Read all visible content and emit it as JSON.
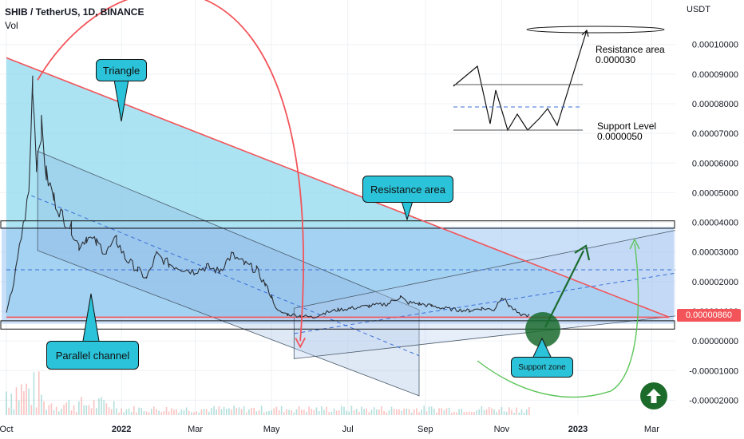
{
  "header": {
    "title": "SHIB / TetherUS, 1D, BINANCE",
    "indicator": "Vol",
    "axis_unit": "USDT"
  },
  "colors": {
    "triangle_line": "#f25459",
    "triangle_fill": "#8fd9ef",
    "channel_fill": "#9ec5f2",
    "accent_arrow": "#1a6b2e",
    "curve": "#f25459",
    "green_curve": "#5ec55b",
    "price_tag": "#f25459"
  },
  "annotations": {
    "triangle": "Triangle",
    "resistance_callout": "Resistance area",
    "parallel_channel": "Parallel channel",
    "support_zone": "Support zone",
    "resistance_note_label": "Resistance area",
    "resistance_note_value": "0.000030",
    "support_note_label": "Support Level",
    "support_note_value": "0.0000050"
  },
  "current_price": "0.00000860",
  "icons": {
    "up_arrow": "arrow-up-circle-icon"
  },
  "chart_data": {
    "type": "line",
    "title": "SHIB / TetherUS, 1D, BINANCE",
    "ylabel": "USDT",
    "ylim": [
      -2.5e-05,
      0.000115
    ],
    "y_ticks": [
      "0.00010000",
      "0.00009000",
      "0.00008000",
      "0.00007000",
      "0.00006000",
      "0.00005000",
      "0.00004000",
      "0.00003000",
      "0.00002000",
      "0.00001000",
      "0.00000000",
      "-0.00001000",
      "-0.00002000"
    ],
    "y_tick_values": [
      0.0001,
      9e-05,
      8e-05,
      7e-05,
      6e-05,
      5e-05,
      4e-05,
      3e-05,
      2e-05,
      1e-05,
      0.0,
      -1e-05,
      -2e-05
    ],
    "x_ticks": [
      "Oct",
      "2022",
      "Mar",
      "May",
      "Jul",
      "Sep",
      "Nov",
      "2023",
      "Mar"
    ],
    "x_tick_days": [
      0,
      92,
      151,
      212,
      273,
      335,
      396,
      457,
      516
    ],
    "series": [
      {
        "values": [
          [
            0,
            9e-06
          ],
          [
            6,
            2e-05
          ],
          [
            12,
            3.5e-05
          ],
          [
            18,
            5e-05
          ],
          [
            21,
            8.8e-05
          ],
          [
            24,
            6e-05
          ],
          [
            28,
            7.2e-05
          ],
          [
            32,
            5.6e-05
          ],
          [
            38,
            4.8e-05
          ],
          [
            45,
            4.2e-05
          ],
          [
            52,
            3.8e-05
          ],
          [
            58,
            3.2e-05
          ],
          [
            64,
            3.5e-05
          ],
          [
            72,
            3.3e-05
          ],
          [
            80,
            3e-05
          ],
          [
            88,
            3.4e-05
          ],
          [
            95,
            2.8e-05
          ],
          [
            105,
            2.4e-05
          ],
          [
            112,
            2.1e-05
          ],
          [
            120,
            2.9e-05
          ],
          [
            130,
            2.6e-05
          ],
          [
            140,
            2.45e-05
          ],
          [
            150,
            2.35e-05
          ],
          [
            160,
            2.5e-05
          ],
          [
            170,
            2.35e-05
          ],
          [
            180,
            2.9e-05
          ],
          [
            190,
            2.6e-05
          ],
          [
            200,
            2.4e-05
          ],
          [
            207,
            1.9e-05
          ],
          [
            212,
            1.5e-05
          ],
          [
            217,
            1e-05
          ],
          [
            225,
            9e-06
          ],
          [
            235,
            8.5e-06
          ],
          [
            245,
            8e-06
          ],
          [
            255,
            9.5e-06
          ],
          [
            265,
            1.05e-05
          ],
          [
            275,
            1.1e-05
          ],
          [
            290,
            1.18e-05
          ],
          [
            305,
            1.25e-05
          ],
          [
            315,
            1.5e-05
          ],
          [
            320,
            1.3e-05
          ],
          [
            330,
            1.25e-05
          ],
          [
            340,
            1.18e-05
          ],
          [
            350,
            1.1e-05
          ],
          [
            360,
            1.05e-05
          ],
          [
            370,
            1.02e-05
          ],
          [
            380,
            1.1e-05
          ],
          [
            390,
            1.05e-05
          ],
          [
            396,
            1.5e-05
          ],
          [
            402,
            1.2e-05
          ],
          [
            410,
            9e-06
          ],
          [
            418,
            8.6e-06
          ]
        ]
      }
    ]
  }
}
